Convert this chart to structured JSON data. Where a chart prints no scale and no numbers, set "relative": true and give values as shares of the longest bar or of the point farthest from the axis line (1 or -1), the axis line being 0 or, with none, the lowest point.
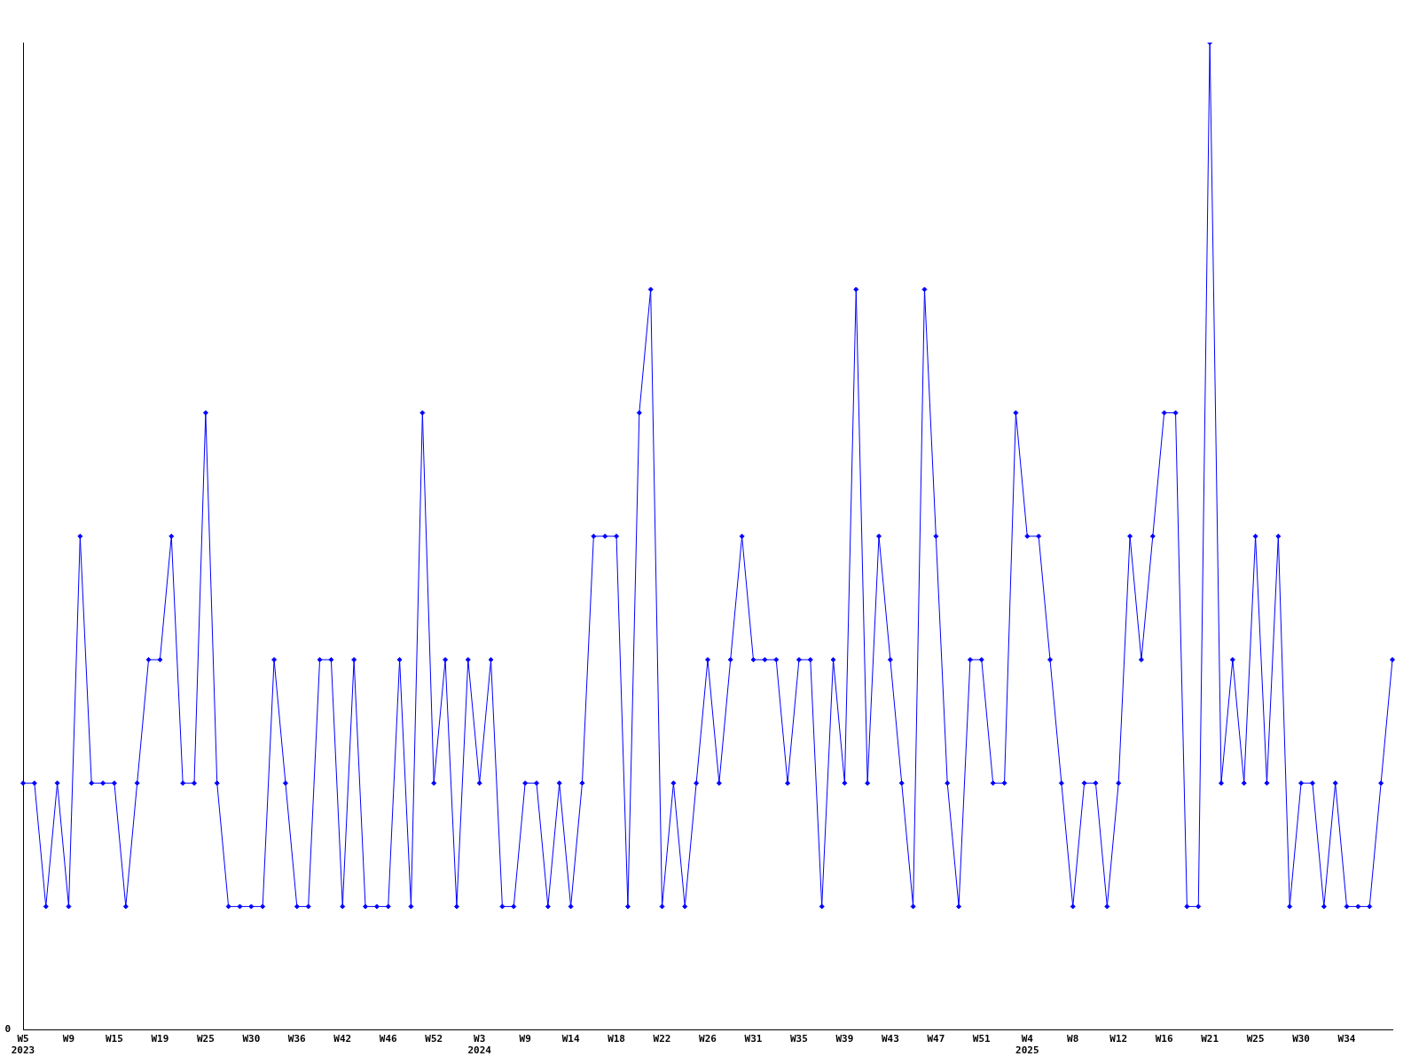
{
  "chart_data": {
    "type": "line",
    "relative": true,
    "color": "#0000ff",
    "marker": "diamond",
    "grid": false,
    "legend": false,
    "annotations": [
      "0"
    ],
    "categories": [
      "W5\n2023",
      null,
      null,
      null,
      "W9",
      null,
      null,
      null,
      "W15",
      null,
      null,
      null,
      "W19",
      null,
      null,
      null,
      "W25",
      null,
      null,
      null,
      "W30",
      null,
      null,
      null,
      "W36",
      null,
      null,
      null,
      "W42",
      null,
      null,
      null,
      "W46",
      null,
      null,
      null,
      "W52",
      null,
      null,
      null,
      "W3\n2024",
      null,
      null,
      null,
      "W9",
      null,
      null,
      null,
      "W14",
      null,
      null,
      null,
      "W18",
      null,
      null,
      null,
      "W22",
      null,
      null,
      null,
      "W26",
      null,
      null,
      null,
      "W31",
      null,
      null,
      null,
      "W35",
      null,
      null,
      null,
      "W39",
      null,
      null,
      null,
      "W43",
      null,
      null,
      null,
      "W47",
      null,
      null,
      null,
      "W51",
      null,
      null,
      null,
      "W4\n2025",
      null,
      null,
      null,
      "W8",
      null,
      null,
      null,
      "W12",
      null,
      null,
      null,
      "W16",
      null,
      null,
      null,
      "W21",
      null,
      null,
      null,
      "W25",
      null,
      null,
      null,
      "W30",
      null,
      null,
      null,
      "W34",
      null,
      null,
      null,
      null
    ],
    "values": [
      0.25,
      0.25,
      0.125,
      0.25,
      0.125,
      0.5,
      0.25,
      0.25,
      0.25,
      0.125,
      0.25,
      0.375,
      0.375,
      0.5,
      0.25,
      0.25,
      0.625,
      0.25,
      0.125,
      0.125,
      0.125,
      0.125,
      0.375,
      0.25,
      0.125,
      0.125,
      0.375,
      0.375,
      0.125,
      0.375,
      0.125,
      0.125,
      0.125,
      0.375,
      0.125,
      0.625,
      0.25,
      0.375,
      0.125,
      0.375,
      0.25,
      0.375,
      0.125,
      0.125,
      0.25,
      0.25,
      0.125,
      0.25,
      0.125,
      0.25,
      0.5,
      0.5,
      0.5,
      0.125,
      0.625,
      0.75,
      0.125,
      0.25,
      0.125,
      0.25,
      0.375,
      0.25,
      0.375,
      0.5,
      0.375,
      0.375,
      0.375,
      0.25,
      0.375,
      0.375,
      0.125,
      0.375,
      0.25,
      0.75,
      0.25,
      0.5,
      0.375,
      0.25,
      0.125,
      0.75,
      0.5,
      0.25,
      0.125,
      0.375,
      0.375,
      0.25,
      0.25,
      0.625,
      0.5,
      0.5,
      0.375,
      0.25,
      0.125,
      0.25,
      0.25,
      0.125,
      0.25,
      0.5,
      0.375,
      0.5,
      0.625,
      0.625,
      0.125,
      0.125,
      1,
      0.25,
      0.375,
      0.25,
      0.5,
      0.25,
      0.5,
      0.125,
      0.25,
      0.25,
      0.125,
      0.25,
      0.125,
      0.125,
      0.125,
      0.25,
      0.375
    ]
  }
}
